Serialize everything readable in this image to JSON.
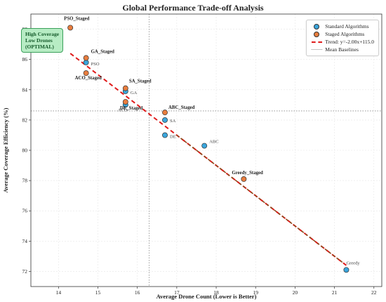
{
  "chart_data": {
    "type": "scatter",
    "title": "Global Performance Trade-off Analysis",
    "xlabel": "Average Drone Count (Lower is Better)",
    "ylabel": "Average Coverage Efficiency (%)",
    "xlim": [
      13.3,
      22.2
    ],
    "ylim": [
      71.0,
      89.0
    ],
    "xticks": [
      14,
      15,
      16,
      17,
      18,
      19,
      20,
      21,
      22
    ],
    "yticks": [
      72,
      74,
      76,
      78,
      80,
      82,
      84,
      86,
      88
    ],
    "grid": true,
    "legend_position": "top-right",
    "series": [
      {
        "name": "Standard Algorithms",
        "color": "#3aa6dd",
        "points": [
          {
            "label": "PSO",
            "x": 14.7,
            "y": 85.8
          },
          {
            "label": "GA",
            "x": 15.7,
            "y": 83.9
          },
          {
            "label": "ACO",
            "x": 15.7,
            "y": 83.0
          },
          {
            "label": "SA",
            "x": 16.7,
            "y": 82.0
          },
          {
            "label": "DE",
            "x": 16.7,
            "y": 81.0
          },
          {
            "label": "ABC",
            "x": 17.7,
            "y": 80.3
          },
          {
            "label": "Greedy",
            "x": 21.3,
            "y": 72.1
          }
        ]
      },
      {
        "name": "Staged Algorithms",
        "color": "#e87d3e",
        "points": [
          {
            "label": "PSO_Staged",
            "x": 14.3,
            "y": 88.1
          },
          {
            "label": "GA_Staged",
            "x": 14.7,
            "y": 86.1
          },
          {
            "label": "ACO_Staged",
            "x": 14.7,
            "y": 85.1
          },
          {
            "label": "SA_Staged",
            "x": 15.7,
            "y": 84.1
          },
          {
            "label": "DE_Staged",
            "x": 15.7,
            "y": 83.2
          },
          {
            "label": "ABC_Staged",
            "x": 16.7,
            "y": 82.5
          },
          {
            "label": "Greedy_Staged",
            "x": 18.7,
            "y": 78.1
          }
        ]
      }
    ],
    "trend": {
      "name": "Trend: y=-2.00x+115.0",
      "slope": -2.0,
      "intercept": 115.0,
      "x_range": [
        14.3,
        21.3
      ],
      "color": "#e01b1b"
    },
    "baselines": {
      "name": "Mean Baselines",
      "x": 16.3,
      "y": 82.6,
      "color": "#888888"
    },
    "callout": {
      "lines": [
        "High Coverage",
        "Low Drones",
        "(OPTIMAL)"
      ]
    }
  }
}
